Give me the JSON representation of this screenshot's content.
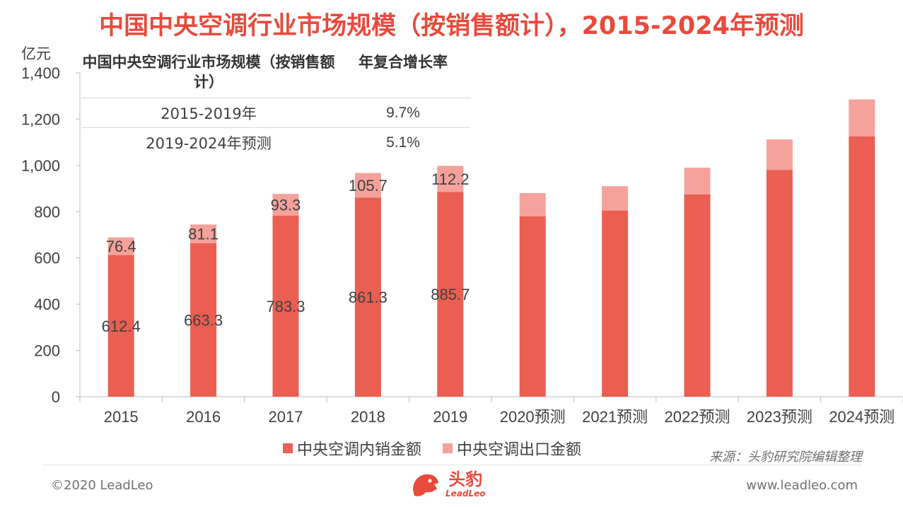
{
  "title": "中国中央空调行业市场规模（按销售额计），2015-2024年预测",
  "unit_label": "亿元",
  "summary_table": {
    "header_col1": "中国中央空调行业市场规模（按销售额计）",
    "header_col2": "年复合增长率",
    "rows": [
      {
        "period": "2015-2019年",
        "cagr": "9.7%"
      },
      {
        "period": "2019-2024年预测",
        "cagr": "5.1%"
      }
    ]
  },
  "colors": {
    "title": "#e84a3c",
    "domestic": "#ea5f52",
    "export": "#f4a29b"
  },
  "chart_data": {
    "type": "bar",
    "stacked": true,
    "categories": [
      "2015",
      "2016",
      "2017",
      "2018",
      "2019",
      "2020预测",
      "2021预测",
      "2022预测",
      "2023预测",
      "2024预测"
    ],
    "ylim": [
      0,
      1400
    ],
    "yticks": [
      "0",
      "200",
      "400",
      "600",
      "800",
      "1,000",
      "1,200",
      "1,400"
    ],
    "ytick_values": [
      0,
      200,
      400,
      600,
      800,
      1000,
      1200,
      1400
    ],
    "series": [
      {
        "name": "中央空调内销金额",
        "values": [
          612.4,
          663.3,
          783.3,
          861.3,
          885.7,
          780,
          805,
          875,
          980,
          1125
        ],
        "labels": [
          "612.4",
          "663.3",
          "783.3",
          "861.3",
          "885.7",
          null,
          null,
          null,
          null,
          null
        ]
      },
      {
        "name": "中央空调出口金额",
        "values": [
          76.4,
          81.1,
          93.3,
          105.7,
          112.2,
          100,
          105,
          115,
          132,
          160
        ],
        "labels": [
          "76.4",
          "81.1",
          "93.3",
          "105.7",
          "112.2",
          null,
          null,
          null,
          null,
          null
        ]
      }
    ],
    "legend_position": "bottom"
  },
  "source_note": "来源：头豹研究院编辑整理",
  "footer": {
    "copyright": "©2020 LeadLeo",
    "website": "www.leadleo.com",
    "logo_cn": "头豹",
    "logo_en": "LeadLeo"
  }
}
